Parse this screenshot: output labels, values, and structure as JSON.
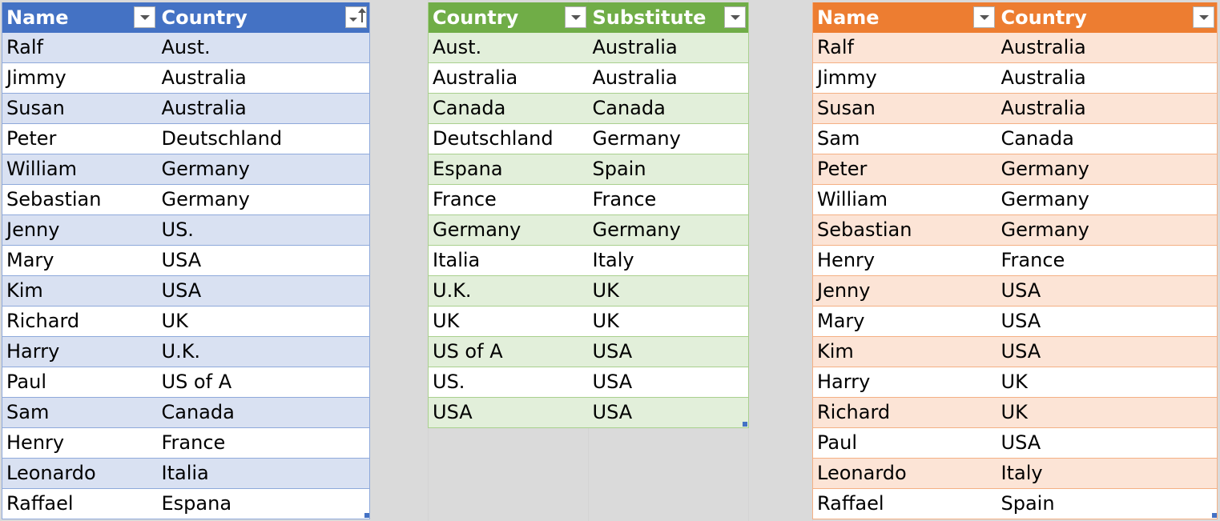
{
  "source_table": {
    "headers": [
      "Name",
      "Country"
    ],
    "rows": [
      [
        "Ralf",
        "Aust."
      ],
      [
        "Jimmy",
        "Australia"
      ],
      [
        "Susan",
        "Australia"
      ],
      [
        "Peter",
        "Deutschland"
      ],
      [
        "William",
        "Germany"
      ],
      [
        "Sebastian",
        "Germany"
      ],
      [
        "Jenny",
        "US."
      ],
      [
        "Mary",
        "USA"
      ],
      [
        "Kim",
        "USA"
      ],
      [
        "Richard",
        "UK"
      ],
      [
        "Harry",
        "U.K."
      ],
      [
        "Paul",
        "US of A"
      ],
      [
        "Sam",
        "Canada"
      ],
      [
        "Henry",
        "France"
      ],
      [
        "Leonardo",
        "Italia"
      ],
      [
        "Raffael",
        "Espana"
      ]
    ],
    "color_header": "#4472c4",
    "color_band": "#d9e1f2"
  },
  "substitution_table": {
    "headers": [
      "Country",
      "Substitute"
    ],
    "rows": [
      [
        "Aust.",
        "Australia"
      ],
      [
        "Australia",
        "Australia"
      ],
      [
        "Canada",
        "Canada"
      ],
      [
        "Deutschland",
        "Germany"
      ],
      [
        "Espana",
        "Spain"
      ],
      [
        "France",
        "France"
      ],
      [
        "Germany",
        "Germany"
      ],
      [
        "Italia",
        "Italy"
      ],
      [
        "U.K.",
        "UK"
      ],
      [
        "UK",
        "UK"
      ],
      [
        "US of A",
        "USA"
      ],
      [
        "US.",
        "USA"
      ],
      [
        "USA",
        "USA"
      ]
    ],
    "color_header": "#70ad47",
    "color_band": "#e2efda"
  },
  "result_table": {
    "headers": [
      "Name",
      "Country"
    ],
    "rows": [
      [
        "Ralf",
        "Australia"
      ],
      [
        "Jimmy",
        "Australia"
      ],
      [
        "Susan",
        "Australia"
      ],
      [
        "Sam",
        "Canada"
      ],
      [
        "Peter",
        "Germany"
      ],
      [
        "William",
        "Germany"
      ],
      [
        "Sebastian",
        "Germany"
      ],
      [
        "Henry",
        "France"
      ],
      [
        "Jenny",
        "USA"
      ],
      [
        "Mary",
        "USA"
      ],
      [
        "Kim",
        "USA"
      ],
      [
        "Harry",
        "UK"
      ],
      [
        "Richard",
        "UK"
      ],
      [
        "Paul",
        "USA"
      ],
      [
        "Leonardo",
        "Italy"
      ],
      [
        "Raffael",
        "Spain"
      ]
    ],
    "color_header": "#ed7d31",
    "color_band": "#fce4d6"
  },
  "icons": {
    "filter": "filter-dropdown-icon",
    "sort": "sort-ascending-icon"
  }
}
